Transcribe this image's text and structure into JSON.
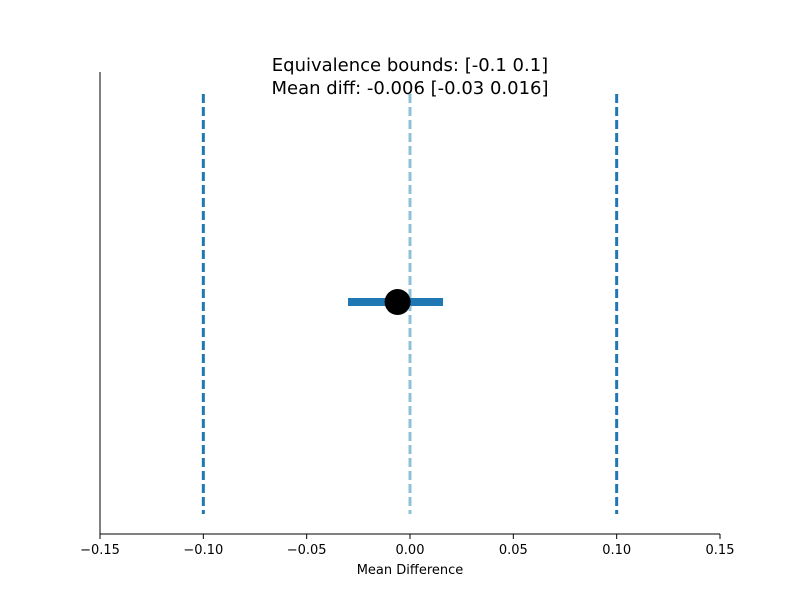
{
  "chart_data": {
    "type": "scatter",
    "title_lines": [
      "Equivalence bounds: [-0.1  0.1]",
      "Mean diff: -0.006 [-0.03  0.016]"
    ],
    "xlabel": "Mean Difference",
    "ylabel": "",
    "xlim": [
      -0.15,
      0.15
    ],
    "x_ticks": [
      -0.15,
      -0.1,
      -0.05,
      0.0,
      0.05,
      0.1,
      0.15
    ],
    "x_tick_labels": [
      "−0.15",
      "−0.10",
      "−0.05",
      "0.00",
      "0.05",
      "0.10",
      "0.15"
    ],
    "mean_diff": -0.006,
    "ci": [
      -0.03,
      0.016
    ],
    "equivalence_bounds": [
      -0.1,
      0.1
    ],
    "reference_line": 0.0,
    "grid": false,
    "colors": {
      "bounds": "#1f77b4",
      "ci_bar": "#1f77b4",
      "reference": "#8ec1d9",
      "point": "#000000",
      "axis": "#000000"
    }
  }
}
